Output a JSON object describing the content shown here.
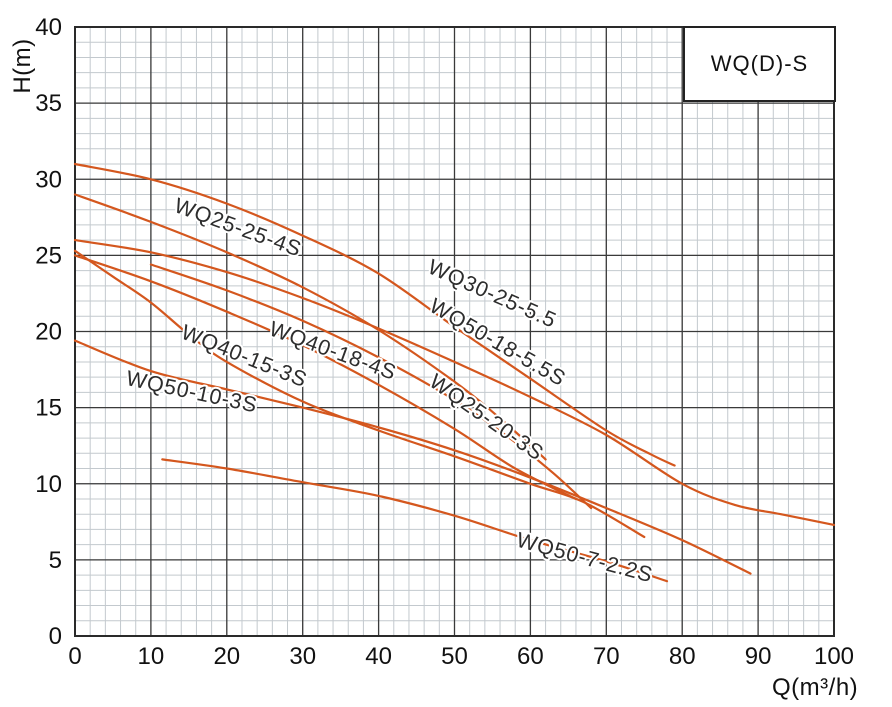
{
  "legend": {
    "label": "WQ(D)-S"
  },
  "axes": {
    "x_label": "Q(m³/h)",
    "y_label": "H(m)",
    "x_ticks": [
      0,
      10,
      20,
      30,
      40,
      50,
      60,
      70,
      80,
      90,
      100
    ],
    "y_ticks": [
      0,
      5,
      10,
      15,
      20,
      25,
      30,
      35,
      40
    ]
  },
  "colors": {
    "curve": "#d4571e",
    "grid_major": "#3a3a3a",
    "grid_minor": "#c3c9ce",
    "frame": "#2a2a2a",
    "tick_text": "#111111",
    "label_text": "#2d2d2d"
  },
  "chart_data": {
    "type": "line",
    "title": "WQ(D)-S",
    "xlabel": "Q(m³/h)",
    "ylabel": "H(m)",
    "xlim": [
      0,
      100
    ],
    "ylim": [
      0,
      40
    ],
    "x_major_step": 10,
    "x_minor_step": 2,
    "y_major_step": 5,
    "y_minor_step": 1,
    "grid": true,
    "legend_position": "top-right",
    "series": [
      {
        "name": "WQ30-25-5.5",
        "points": [
          [
            0,
            31
          ],
          [
            10,
            30
          ],
          [
            20,
            28.4
          ],
          [
            30,
            26.3
          ],
          [
            40,
            23.8
          ],
          [
            50,
            20.3
          ],
          [
            60,
            16.9
          ],
          [
            70,
            13.5
          ],
          [
            76,
            11.9
          ],
          [
            79,
            11.2
          ]
        ],
        "label": {
          "q": 46.3,
          "h": 23.9,
          "angle_deg": 24
        }
      },
      {
        "name": "WQ25-25-4S",
        "points": [
          [
            0,
            29
          ],
          [
            10,
            27.2
          ],
          [
            20,
            25.2
          ],
          [
            30,
            22.9
          ],
          [
            40,
            20.1
          ],
          [
            50,
            16.7
          ],
          [
            56,
            14.3
          ],
          [
            62,
            11.6
          ]
        ],
        "label": {
          "q": 12.9,
          "h": 27.9,
          "angle_deg": 20
        }
      },
      {
        "name": "WQ50-18-5.5S",
        "points": [
          [
            0,
            26
          ],
          [
            10,
            25.2
          ],
          [
            20,
            23.9
          ],
          [
            30,
            22.2
          ],
          [
            40,
            20.2
          ],
          [
            50,
            18
          ],
          [
            60,
            15.7
          ],
          [
            70,
            13.2
          ],
          [
            80,
            10
          ],
          [
            87,
            8.6
          ],
          [
            93,
            8
          ],
          [
            100,
            7.3
          ]
        ],
        "label": {
          "q": 46.5,
          "h": 21.4,
          "angle_deg": 30
        }
      },
      {
        "name": "WQ40-18-4S",
        "points": [
          [
            10,
            24.4
          ],
          [
            20,
            22.7
          ],
          [
            30,
            20.7
          ],
          [
            40,
            18.3
          ],
          [
            50,
            15.5
          ],
          [
            57,
            13.1
          ],
          [
            63,
            10.7
          ],
          [
            68,
            8.4
          ]
        ],
        "label": {
          "q": 25.4,
          "h": 19.8,
          "angle_deg": 20
        }
      },
      {
        "name": "WQ40-15-3S",
        "points": [
          [
            0,
            25.3
          ],
          [
            5,
            23.6
          ],
          [
            10,
            21.9
          ],
          [
            15,
            19.8
          ],
          [
            20,
            18
          ],
          [
            30,
            15.4
          ],
          [
            40,
            13.5
          ],
          [
            50,
            11.8
          ],
          [
            60,
            10
          ],
          [
            67,
            8.8
          ],
          [
            75,
            6.5
          ]
        ],
        "label": {
          "q": 13.8,
          "h": 19.6,
          "angle_deg": 22
        }
      },
      {
        "name": "WQ25-20-3S",
        "points": [
          [
            0,
            25
          ],
          [
            10,
            23.3
          ],
          [
            20,
            21.3
          ],
          [
            30,
            19.1
          ],
          [
            40,
            16.5
          ],
          [
            50,
            13.6
          ],
          [
            58,
            11
          ],
          [
            66,
            9
          ]
        ],
        "label": {
          "q": 46.5,
          "h": 16.5,
          "angle_deg": 35
        }
      },
      {
        "name": "WQ50-10-3S",
        "points": [
          [
            0,
            19.4
          ],
          [
            10,
            17.4
          ],
          [
            20,
            16.2
          ],
          [
            30,
            15
          ],
          [
            40,
            13.7
          ],
          [
            50,
            12.2
          ],
          [
            60,
            10.4
          ],
          [
            70,
            8.4
          ],
          [
            80,
            6.3
          ],
          [
            89,
            4.1
          ]
        ],
        "label": {
          "q": 6.6,
          "h": 16.5,
          "angle_deg": 12
        }
      },
      {
        "name": "WQ50-7-2.2S",
        "points": [
          [
            11.5,
            11.6
          ],
          [
            20,
            11
          ],
          [
            30,
            10.1
          ],
          [
            40,
            9.2
          ],
          [
            50,
            7.9
          ],
          [
            60,
            6.3
          ],
          [
            70,
            4.9
          ],
          [
            78,
            3.6
          ]
        ],
        "label": {
          "q": 58,
          "h": 5.9,
          "angle_deg": 15
        }
      }
    ]
  }
}
